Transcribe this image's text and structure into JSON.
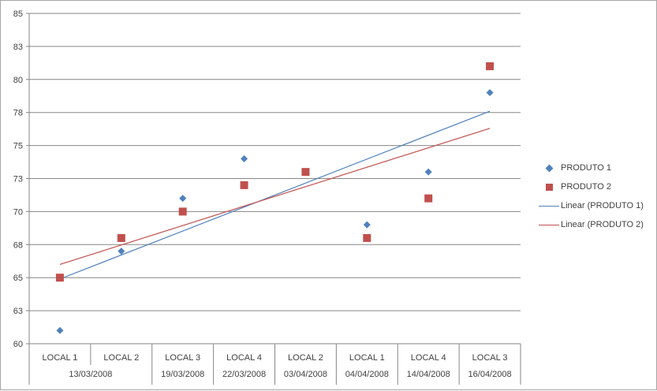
{
  "chart_data": {
    "type": "scatter",
    "y_ticks": [
      "60",
      "63",
      "65",
      "68",
      "70",
      "73",
      "75",
      "78",
      "80",
      "83",
      "85"
    ],
    "ylim": [
      60,
      85
    ],
    "grid": true,
    "legend_position": "right",
    "category_level1": [
      "LOCAL 1",
      "LOCAL 2",
      "LOCAL 3",
      "LOCAL 4",
      "LOCAL 2",
      "LOCAL 1",
      "LOCAL 4",
      "LOCAL 3"
    ],
    "category_level2": [
      {
        "label": "13/03/2008",
        "span": 2
      },
      {
        "label": "19/03/2008",
        "span": 1
      },
      {
        "label": "22/03/2008",
        "span": 1
      },
      {
        "label": "03/04/2008",
        "span": 1
      },
      {
        "label": "04/04/2008",
        "span": 1
      },
      {
        "label": "14/04/2008",
        "span": 1
      },
      {
        "label": "16/04/2008",
        "span": 1
      }
    ],
    "series": [
      {
        "name": "PRODUTO 1",
        "marker": "diamond",
        "color": "#4f81bd",
        "values": [
          61,
          67,
          71,
          74,
          null,
          69,
          73,
          79
        ]
      },
      {
        "name": "PRODUTO 2",
        "marker": "square",
        "color": "#c0504d",
        "values": [
          65,
          68,
          70,
          72,
          73,
          68,
          71,
          81
        ]
      }
    ],
    "trendlines": [
      {
        "name": "Linear (PRODUTO 1)",
        "color": "#4f81bd",
        "from": 64.9,
        "to": 77.6
      },
      {
        "name": "Linear (PRODUTO 2)",
        "color": "#c0504d",
        "from": 66.0,
        "to": 76.3
      }
    ]
  }
}
